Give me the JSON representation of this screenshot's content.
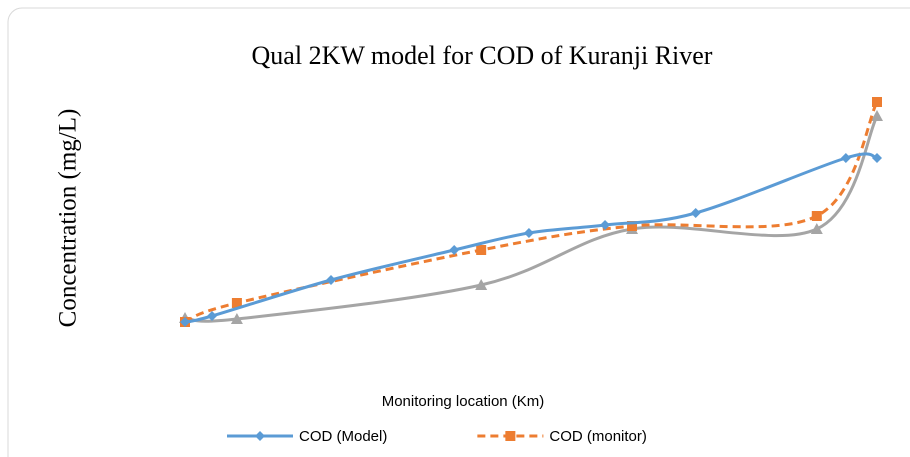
{
  "chart_data": {
    "type": "line",
    "title": "Qual 2KW model for COD of Kuranji River",
    "x_label": "Monitoring location (Km)",
    "y_label": "Concentration (mg/L)",
    "xlim": [
      0,
      100
    ],
    "ylim": [
      0,
      100
    ],
    "smooth": true,
    "series": [
      {
        "name": "COD (Model)",
        "color": "#5b9bd5",
        "marker": "diamond",
        "dashed": false,
        "x": [
          0,
          3.9,
          21.1,
          38.9,
          49.7,
          60.7,
          73.8,
          95.5,
          100
        ],
        "values": [
          7.2,
          9.6,
          24,
          36,
          42.8,
          46,
          50.8,
          72.8,
          72.8
        ]
      },
      {
        "name": "COD (monitor)",
        "color": "#ed7d31",
        "marker": "square",
        "dashed": true,
        "x": [
          0,
          7.5,
          42.8,
          64.6,
          91.3,
          100
        ],
        "values": [
          7.2,
          14.8,
          36,
          45.6,
          49.6,
          95.2
        ]
      },
      {
        "color": "#a5a5a5",
        "marker": "triangle",
        "dashed": false,
        "x": [
          0,
          7.5,
          42.8,
          64.6,
          91.3,
          100
        ],
        "values": [
          8.8,
          8.4,
          22,
          44.4,
          44.4,
          89.6
        ]
      }
    ]
  }
}
